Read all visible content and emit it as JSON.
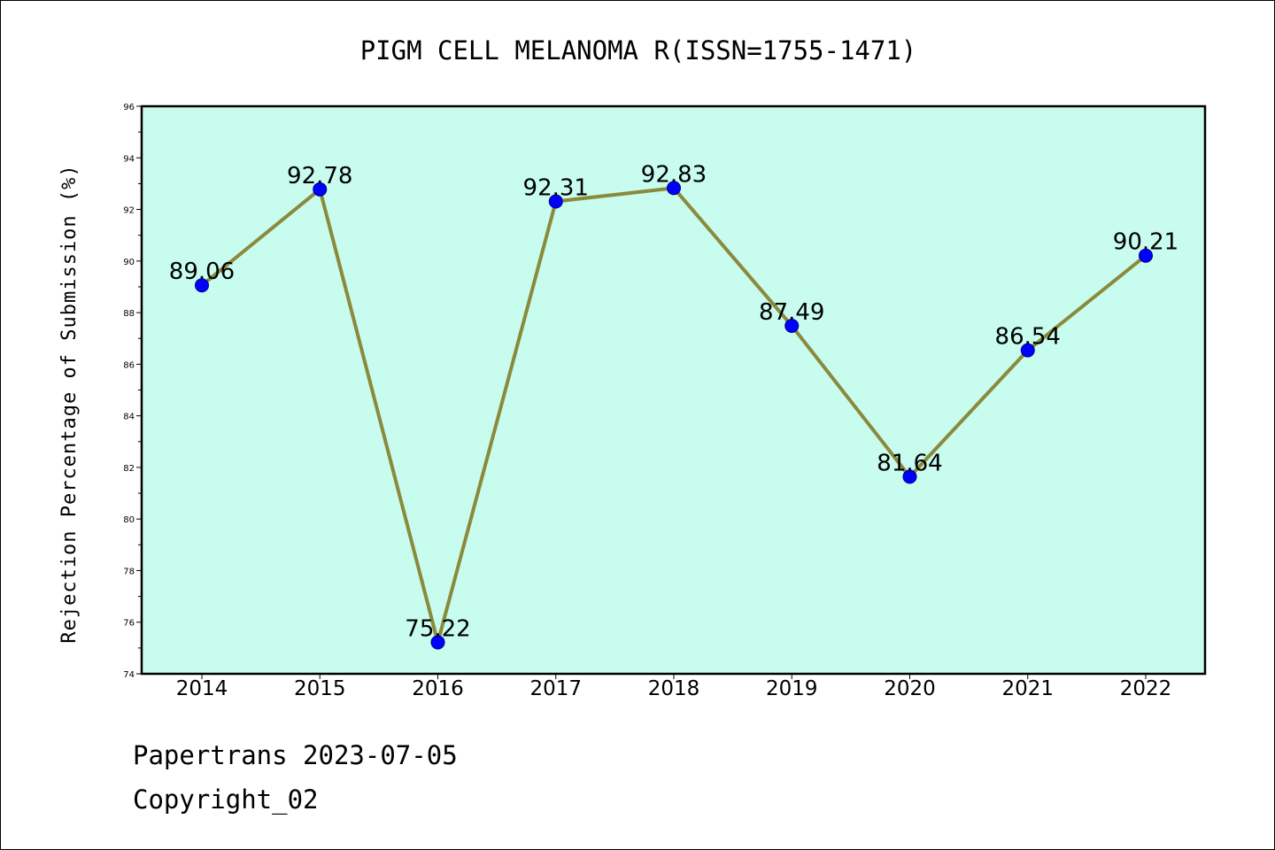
{
  "chart_data": {
    "type": "line",
    "title": "PIGM CELL MELANOMA R(ISSN=1755-1471)",
    "xlabel": "",
    "ylabel": "Rejection Percentage of Submission (%)",
    "categories": [
      "2014",
      "2015",
      "2016",
      "2017",
      "2018",
      "2019",
      "2020",
      "2021",
      "2022"
    ],
    "series": [
      {
        "values": [
          89.06,
          92.78,
          75.22,
          92.31,
          92.83,
          87.49,
          81.64,
          86.54,
          90.21
        ],
        "labels": [
          "89.06",
          "92.78",
          "75.22",
          "92.31",
          "92.83",
          "87.49",
          "81.64",
          "86.54",
          "90.21"
        ]
      }
    ],
    "ylim": [
      74,
      96
    ],
    "yticks": [
      "74",
      "76",
      "78",
      "80",
      "82",
      "84",
      "86",
      "88",
      "90",
      "92",
      "94",
      "96"
    ],
    "grid": false,
    "legend": "none",
    "colors": {
      "plot_background": "#c8fcee",
      "line": "#8a8a3c",
      "marker": "#0000ff",
      "marker_edge": "#00008b"
    }
  },
  "footer": {
    "line1": "Papertrans 2023-07-05",
    "line2": "Copyright_02"
  }
}
